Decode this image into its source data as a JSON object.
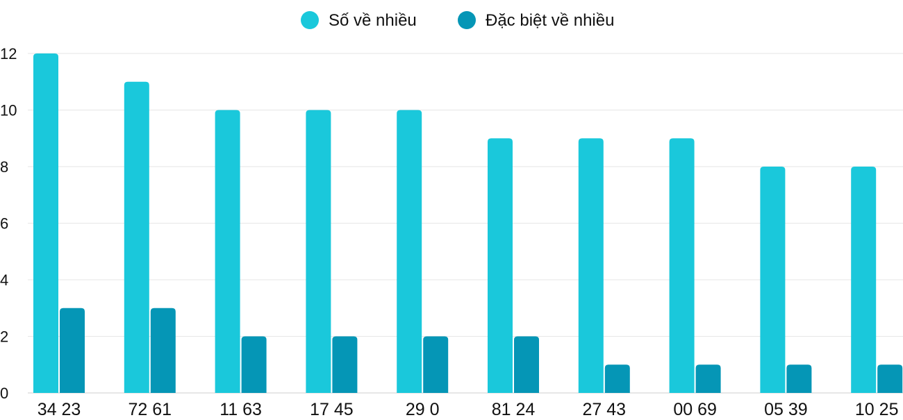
{
  "chart_data": {
    "type": "bar",
    "title": "",
    "xlabel": "",
    "ylabel": "",
    "categories": [
      "34 23",
      "72 61",
      "11 63",
      "17 45",
      "29 0",
      "81 24",
      "27 43",
      "00 69",
      "05 39",
      "10 25"
    ],
    "series": [
      {
        "name": "Số về nhiều",
        "color": "#1ac8db",
        "values": [
          12,
          11,
          10,
          10,
          10,
          9,
          9,
          9,
          8,
          8
        ]
      },
      {
        "name": "Đặc biệt về nhiều",
        "color": "#0596b6",
        "values": [
          3,
          3,
          2,
          2,
          2,
          2,
          1,
          1,
          1,
          1
        ]
      }
    ],
    "ylim": [
      0,
      12
    ],
    "yticks": [
      0,
      2,
      4,
      6,
      8,
      10,
      12
    ],
    "grid": true,
    "legend_position": "top-center"
  }
}
